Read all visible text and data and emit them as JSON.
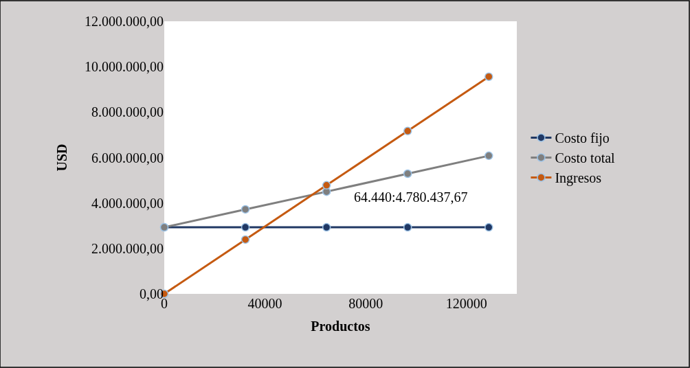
{
  "chart_data": {
    "type": "line",
    "xlabel": "Productos",
    "ylabel": "USD",
    "x": [
      0,
      32220,
      64440,
      96660,
      128880
    ],
    "series": [
      {
        "name": "Costo fijo",
        "color": "#203864",
        "values": [
          2930000,
          2930000,
          2930000,
          2930000,
          2930000
        ]
      },
      {
        "name": "Costo total",
        "color": "#7f7f7f",
        "values": [
          2930000,
          3720000,
          4500000,
          5290000,
          6080000
        ]
      },
      {
        "name": "Ingresos",
        "color": "#c55a11",
        "values": [
          0,
          2390000,
          4780000,
          7170000,
          9560000
        ]
      }
    ],
    "xlim": [
      0,
      140000
    ],
    "xticks": [
      0,
      40000,
      80000,
      120000
    ],
    "ylim": [
      0,
      12000000
    ],
    "yticks": [
      {
        "value": 0,
        "label": "0,00"
      },
      {
        "value": 2000000,
        "label": "2.000.000,00"
      },
      {
        "value": 4000000,
        "label": "4.000.000,00"
      },
      {
        "value": 6000000,
        "label": "6.000.000,00"
      },
      {
        "value": 8000000,
        "label": "8.000.000,00"
      },
      {
        "value": 10000000,
        "label": "10.000.000,00"
      },
      {
        "value": 12000000,
        "label": "12.000.000,00"
      }
    ],
    "annotations": [
      {
        "text": "64.440:4.780.437,67",
        "x": 64440,
        "y": 4780437.67
      }
    ],
    "legend": "right",
    "marker": "circle",
    "line_style": "solid"
  }
}
